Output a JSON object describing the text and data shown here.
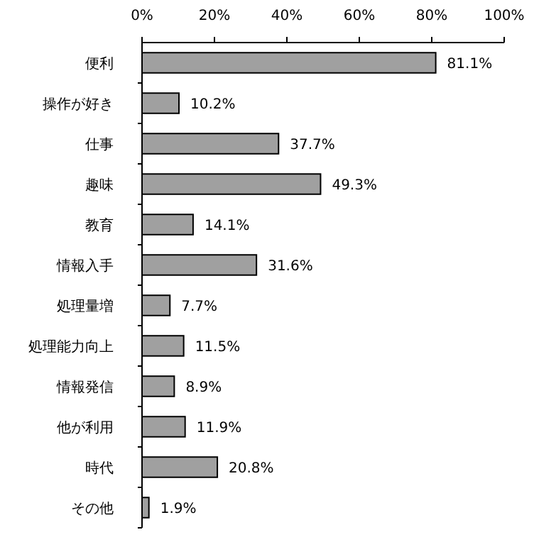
{
  "chart_data": {
    "type": "bar",
    "orientation": "horizontal",
    "categories": [
      "便利",
      "操作が好き",
      "仕事",
      "趣味",
      "教育",
      "情報入手",
      "処理量増",
      "処理能力向上",
      "情報発信",
      "他が利用",
      "時代",
      "その他"
    ],
    "values": [
      81.1,
      10.2,
      37.7,
      49.3,
      14.1,
      31.6,
      7.7,
      11.5,
      8.9,
      11.9,
      20.8,
      1.9
    ],
    "value_labels": [
      "81.1%",
      "10.2%",
      "37.7%",
      "49.3%",
      "14.1%",
      "31.6%",
      "7.7%",
      "11.5%",
      "8.9%",
      "11.9%",
      "20.8%",
      "1.9%"
    ],
    "color": "#a0a0a0",
    "xlim": [
      0,
      100
    ],
    "xticks": [
      {
        "value": 0,
        "label": "0%"
      },
      {
        "value": 20,
        "label": "20%"
      },
      {
        "value": 40,
        "label": "40%"
      },
      {
        "value": 60,
        "label": "60%"
      },
      {
        "value": 80,
        "label": "80%"
      },
      {
        "value": 100,
        "label": "100%"
      }
    ],
    "grid": false
  }
}
